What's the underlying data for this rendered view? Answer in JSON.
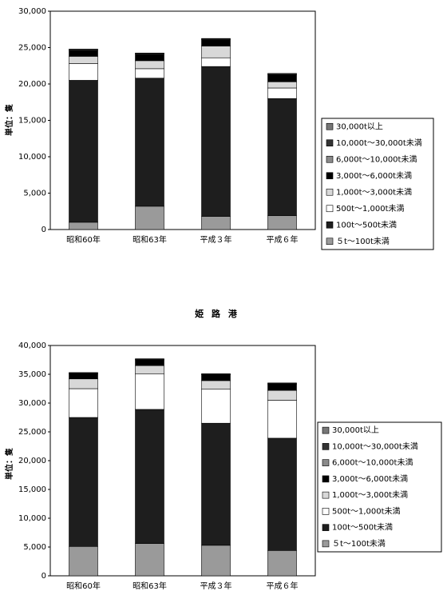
{
  "chart_data": [
    {
      "type": "bar",
      "stacked": true,
      "ylabel": "単位：隻",
      "categories": [
        "昭和60年",
        "昭和63年",
        "平成３年",
        "平成６年"
      ],
      "ylim": [
        0,
        30000
      ],
      "yticks": [
        0,
        {
          "value": 5000,
          "label": "5,000"
        },
        {
          "value": 10000,
          "label": "10,000"
        },
        {
          "value": 15000,
          "label": "15,000"
        },
        {
          "value": 20000,
          "label": "20,000"
        },
        {
          "value": 25000,
          "label": "25,000"
        },
        {
          "value": 30000,
          "label": "30,000"
        }
      ],
      "series": [
        {
          "name": "５t～100t未満",
          "color": "#9a9a9a",
          "values": [
            1000,
            3200,
            1800,
            1900
          ]
        },
        {
          "name": "100t～500t未満",
          "color": "#1e1e1e",
          "values": [
            19500,
            17600,
            20600,
            16100
          ]
        },
        {
          "name": "500t～1,000t未満",
          "color": "#ffffff",
          "values": [
            2300,
            1300,
            1200,
            1450
          ]
        },
        {
          "name": "1,000t～3,000t未満",
          "color": "#d8d8d8",
          "values": [
            1000,
            1100,
            1600,
            850
          ]
        },
        {
          "name": "3,000t～6,000t未満",
          "color": "#000000",
          "values": [
            800,
            900,
            900,
            1000
          ]
        },
        {
          "name": "6,000t～10,000t未満",
          "color": "#8a8a8a",
          "values": [
            100,
            100,
            100,
            100
          ]
        },
        {
          "name": "10,000t～30,000t未満",
          "color": "#333333",
          "values": [
            100,
            50,
            50,
            50
          ]
        },
        {
          "name": "30,000t以上",
          "color": "#777777",
          "values": [
            0,
            0,
            0,
            0
          ]
        }
      ]
    },
    {
      "type": "bar",
      "stacked": true,
      "title": "姫 路 港",
      "ylabel": "単位：隻",
      "categories": [
        "昭和60年",
        "昭和63年",
        "平成３年",
        "平成６年"
      ],
      "ylim": [
        0,
        40000
      ],
      "yticks": [
        0,
        {
          "value": 5000,
          "label": "5,000"
        },
        {
          "value": 10000,
          "label": "10,000"
        },
        {
          "value": 15000,
          "label": "15,000"
        },
        {
          "value": 20000,
          "label": "20,000"
        },
        {
          "value": 25000,
          "label": "25,000"
        },
        {
          "value": 30000,
          "label": "30,000"
        },
        {
          "value": 35000,
          "label": "35,000"
        },
        {
          "value": 40000,
          "label": "40,000"
        }
      ],
      "series": [
        {
          "name": "５t～100t未満",
          "color": "#9a9a9a",
          "values": [
            5100,
            5600,
            5300,
            4400
          ]
        },
        {
          "name": "100t～500t未満",
          "color": "#1e1e1e",
          "values": [
            22400,
            23300,
            21200,
            19500
          ]
        },
        {
          "name": "500t～1,000t未満",
          "color": "#ffffff",
          "values": [
            5000,
            6200,
            5900,
            6600
          ]
        },
        {
          "name": "1,000t～3,000t未満",
          "color": "#d8d8d8",
          "values": [
            1700,
            1400,
            1500,
            1700
          ]
        },
        {
          "name": "3,000t～6,000t未満",
          "color": "#000000",
          "values": [
            900,
            1000,
            1000,
            1100
          ]
        },
        {
          "name": "6,000t～10,000t未満",
          "color": "#8a8a8a",
          "values": [
            100,
            100,
            100,
            100
          ]
        },
        {
          "name": "10,000t～30,000t未満",
          "color": "#333333",
          "values": [
            100,
            100,
            100,
            100
          ]
        },
        {
          "name": "30,000t以上",
          "color": "#777777",
          "values": [
            0,
            0,
            0,
            0
          ]
        }
      ]
    }
  ]
}
